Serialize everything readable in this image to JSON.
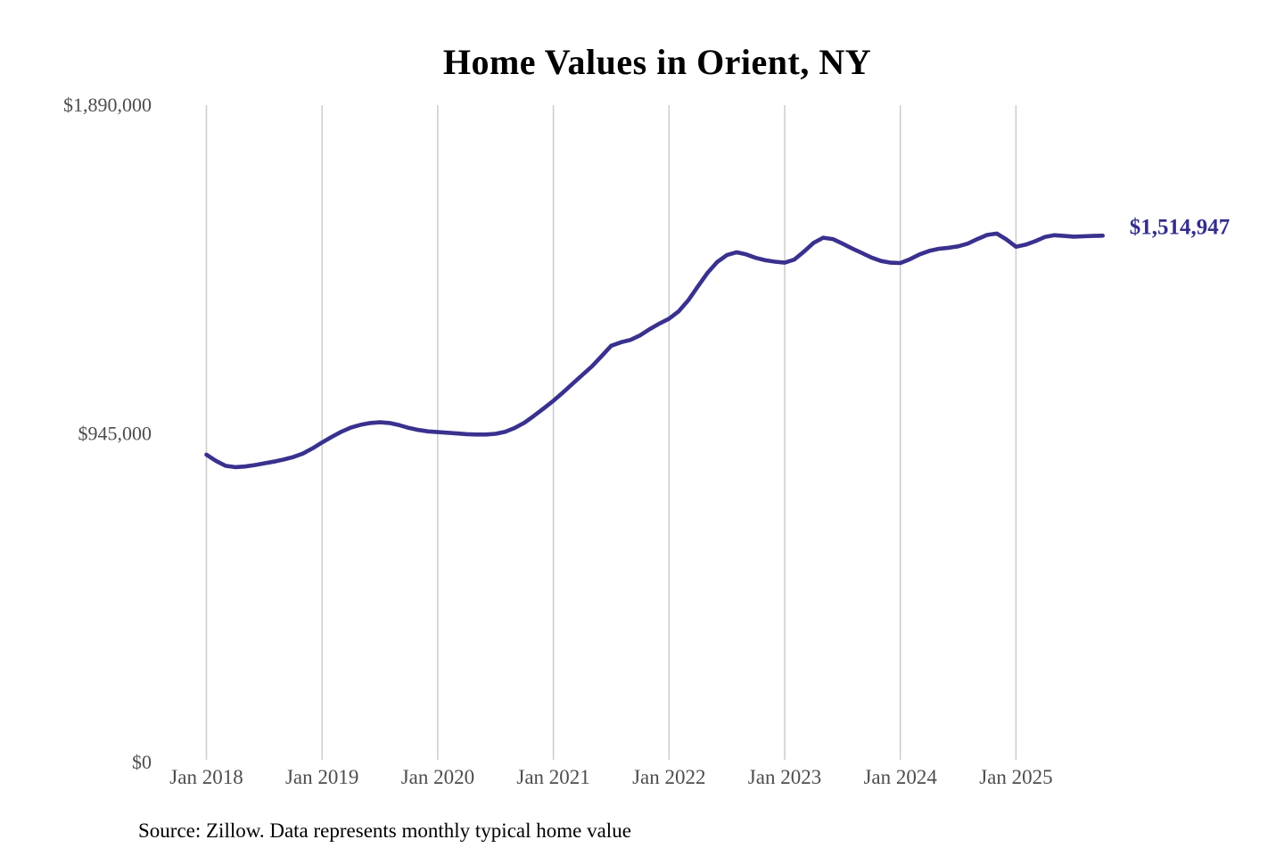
{
  "chart_data": {
    "type": "line",
    "title": "Home Values in Orient, NY",
    "source_note": "Source: Zillow. Data represents monthly typical home value",
    "end_label": "$1,514,947",
    "xlabel": "",
    "ylabel": "",
    "ylim": [
      0,
      1890000
    ],
    "grid": "vertical-only",
    "legend_position": "none",
    "y_ticks": [
      {
        "value": 1890000,
        "label": "$1,890,000"
      },
      {
        "value": 945000,
        "label": "$945,000"
      },
      {
        "value": 0,
        "label": "$0"
      }
    ],
    "x_tick_labels": [
      "Jan 2018",
      "Jan 2019",
      "Jan 2020",
      "Jan 2021",
      "Jan 2022",
      "Jan 2023",
      "Jan 2024",
      "Jan 2025"
    ],
    "series": [
      {
        "name": "Monthly typical home value",
        "start": "Jan 2018",
        "frequency": "monthly",
        "values": [
          885000,
          867000,
          853000,
          849000,
          851000,
          855000,
          860000,
          865000,
          871000,
          878000,
          888000,
          903000,
          920000,
          936000,
          951000,
          963000,
          971000,
          976000,
          978000,
          976000,
          970000,
          962000,
          956000,
          952000,
          950000,
          948000,
          946000,
          944000,
          943000,
          943000,
          945000,
          951000,
          962000,
          977000,
          997000,
          1018000,
          1040000,
          1064000,
          1089000,
          1114000,
          1139000,
          1168000,
          1198000,
          1208000,
          1215000,
          1228000,
          1246000,
          1262000,
          1276000,
          1297000,
          1329000,
          1369000,
          1408000,
          1439000,
          1459000,
          1467000,
          1461000,
          1451000,
          1444000,
          1440000,
          1437000,
          1446000,
          1469000,
          1494000,
          1509000,
          1505000,
          1492000,
          1478000,
          1465000,
          1452000,
          1442000,
          1437000,
          1436000,
          1447000,
          1461000,
          1471000,
          1477000,
          1480000,
          1484000,
          1492000,
          1505000,
          1517000,
          1521000,
          1504000,
          1483000,
          1489000,
          1499000,
          1511000,
          1516000,
          1514000,
          1512000,
          1513000,
          1514000,
          1514947
        ]
      }
    ],
    "colors": {
      "line": "#39318E",
      "end_label": "#332F8C",
      "grid": "#CBCBCB",
      "tick_text": "#4D4D4D",
      "title_text": "#111111",
      "source_text": "#222222"
    }
  }
}
